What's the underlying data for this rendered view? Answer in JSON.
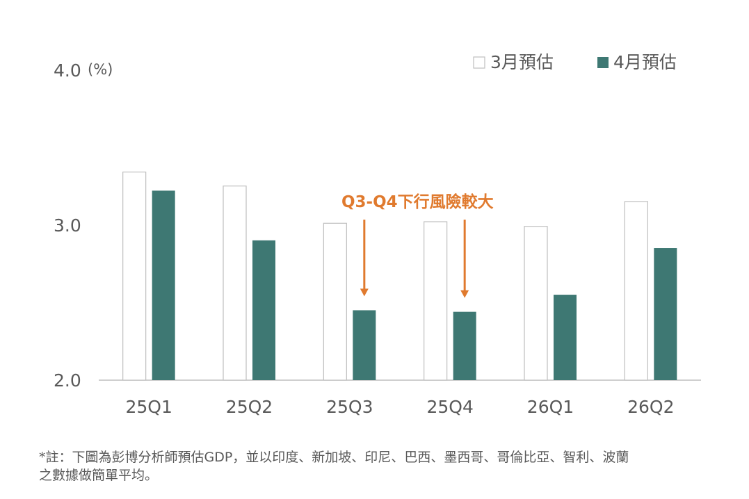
{
  "chart_data": {
    "type": "bar",
    "categories": [
      "25Q1",
      "25Q2",
      "25Q3",
      "25Q4",
      "26Q1",
      "26Q2"
    ],
    "series": [
      {
        "name": "3月預估",
        "values": [
          3.34,
          3.25,
          3.01,
          3.02,
          2.99,
          3.15
        ]
      },
      {
        "name": "4月預估",
        "values": [
          3.22,
          2.9,
          2.45,
          2.44,
          2.55,
          2.85
        ]
      }
    ],
    "unit": "(%)",
    "ylim": [
      2.0,
      4.0
    ],
    "yticks": [
      "2.0",
      "3.0",
      "4.0"
    ],
    "legend_position": "top-right",
    "grid": false,
    "colors": {
      "march": "#ffffff",
      "march_border": "#bfbfbf",
      "april": "#3E7873",
      "annotation": "#E07A2E",
      "axis": "#bfbfbf"
    },
    "annotation": {
      "text": "Q3-Q4下行風險較大",
      "targets": [
        "25Q3",
        "25Q4"
      ]
    }
  },
  "footnote": {
    "line1": "*註：下圖為彭博分析師預估GDP，並以印度、新加坡、印尼、巴西、墨西哥、哥倫比亞、智利、波蘭",
    "line2": "之數據做簡單平均。"
  }
}
